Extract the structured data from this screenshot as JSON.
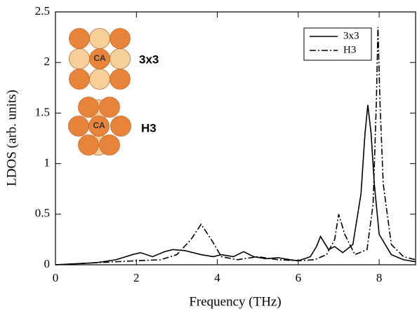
{
  "chart_data": {
    "type": "line",
    "x_label": "Frequency (THz)",
    "y_label": "LDOS (arb. units)",
    "xlim": [
      0,
      8.9
    ],
    "ylim": [
      0,
      2.5
    ],
    "xticks": [
      0,
      2,
      4,
      6,
      8
    ],
    "yticks": [
      0,
      0.5,
      1,
      1.5,
      2,
      2.5
    ],
    "legend": "upper right",
    "series": [
      {
        "name": "3x3",
        "color": "#000000",
        "style": "solid",
        "x": [
          0,
          0.5,
          1,
          1.5,
          1.9,
          2.1,
          2.4,
          2.7,
          2.9,
          3.2,
          3.6,
          3.9,
          4.1,
          4.4,
          4.65,
          4.9,
          5.2,
          5.5,
          5.8,
          6.0,
          6.3,
          6.45,
          6.55,
          6.75,
          6.9,
          7.1,
          7.35,
          7.55,
          7.65,
          7.72,
          7.8,
          7.88,
          8.0,
          8.3,
          8.6,
          8.9
        ],
        "values": [
          0,
          0.01,
          0.02,
          0.05,
          0.1,
          0.12,
          0.08,
          0.13,
          0.15,
          0.14,
          0.1,
          0.08,
          0.1,
          0.08,
          0.13,
          0.08,
          0.06,
          0.07,
          0.05,
          0.04,
          0.08,
          0.18,
          0.28,
          0.15,
          0.18,
          0.12,
          0.2,
          0.7,
          1.3,
          1.58,
          1.3,
          0.8,
          0.3,
          0.1,
          0.05,
          0.03
        ]
      },
      {
        "name": "H3",
        "color": "#000000",
        "style": "dash-dot",
        "x": [
          0,
          1,
          2,
          2.6,
          3.0,
          3.35,
          3.6,
          3.85,
          4.1,
          4.5,
          5.0,
          5.5,
          6.0,
          6.4,
          6.7,
          6.9,
          7.0,
          7.15,
          7.4,
          7.7,
          7.85,
          7.93,
          7.97,
          8.02,
          8.1,
          8.3,
          8.6,
          8.9
        ],
        "values": [
          0,
          0.02,
          0.04,
          0.05,
          0.1,
          0.25,
          0.4,
          0.25,
          0.08,
          0.05,
          0.08,
          0.05,
          0.04,
          0.05,
          0.1,
          0.25,
          0.5,
          0.3,
          0.1,
          0.15,
          0.6,
          1.6,
          2.35,
          1.6,
          0.8,
          0.2,
          0.08,
          0.05
        ]
      }
    ],
    "insets": [
      {
        "label": "3x3",
        "center": "CA"
      },
      {
        "label": "H3",
        "center": "CA"
      }
    ]
  }
}
